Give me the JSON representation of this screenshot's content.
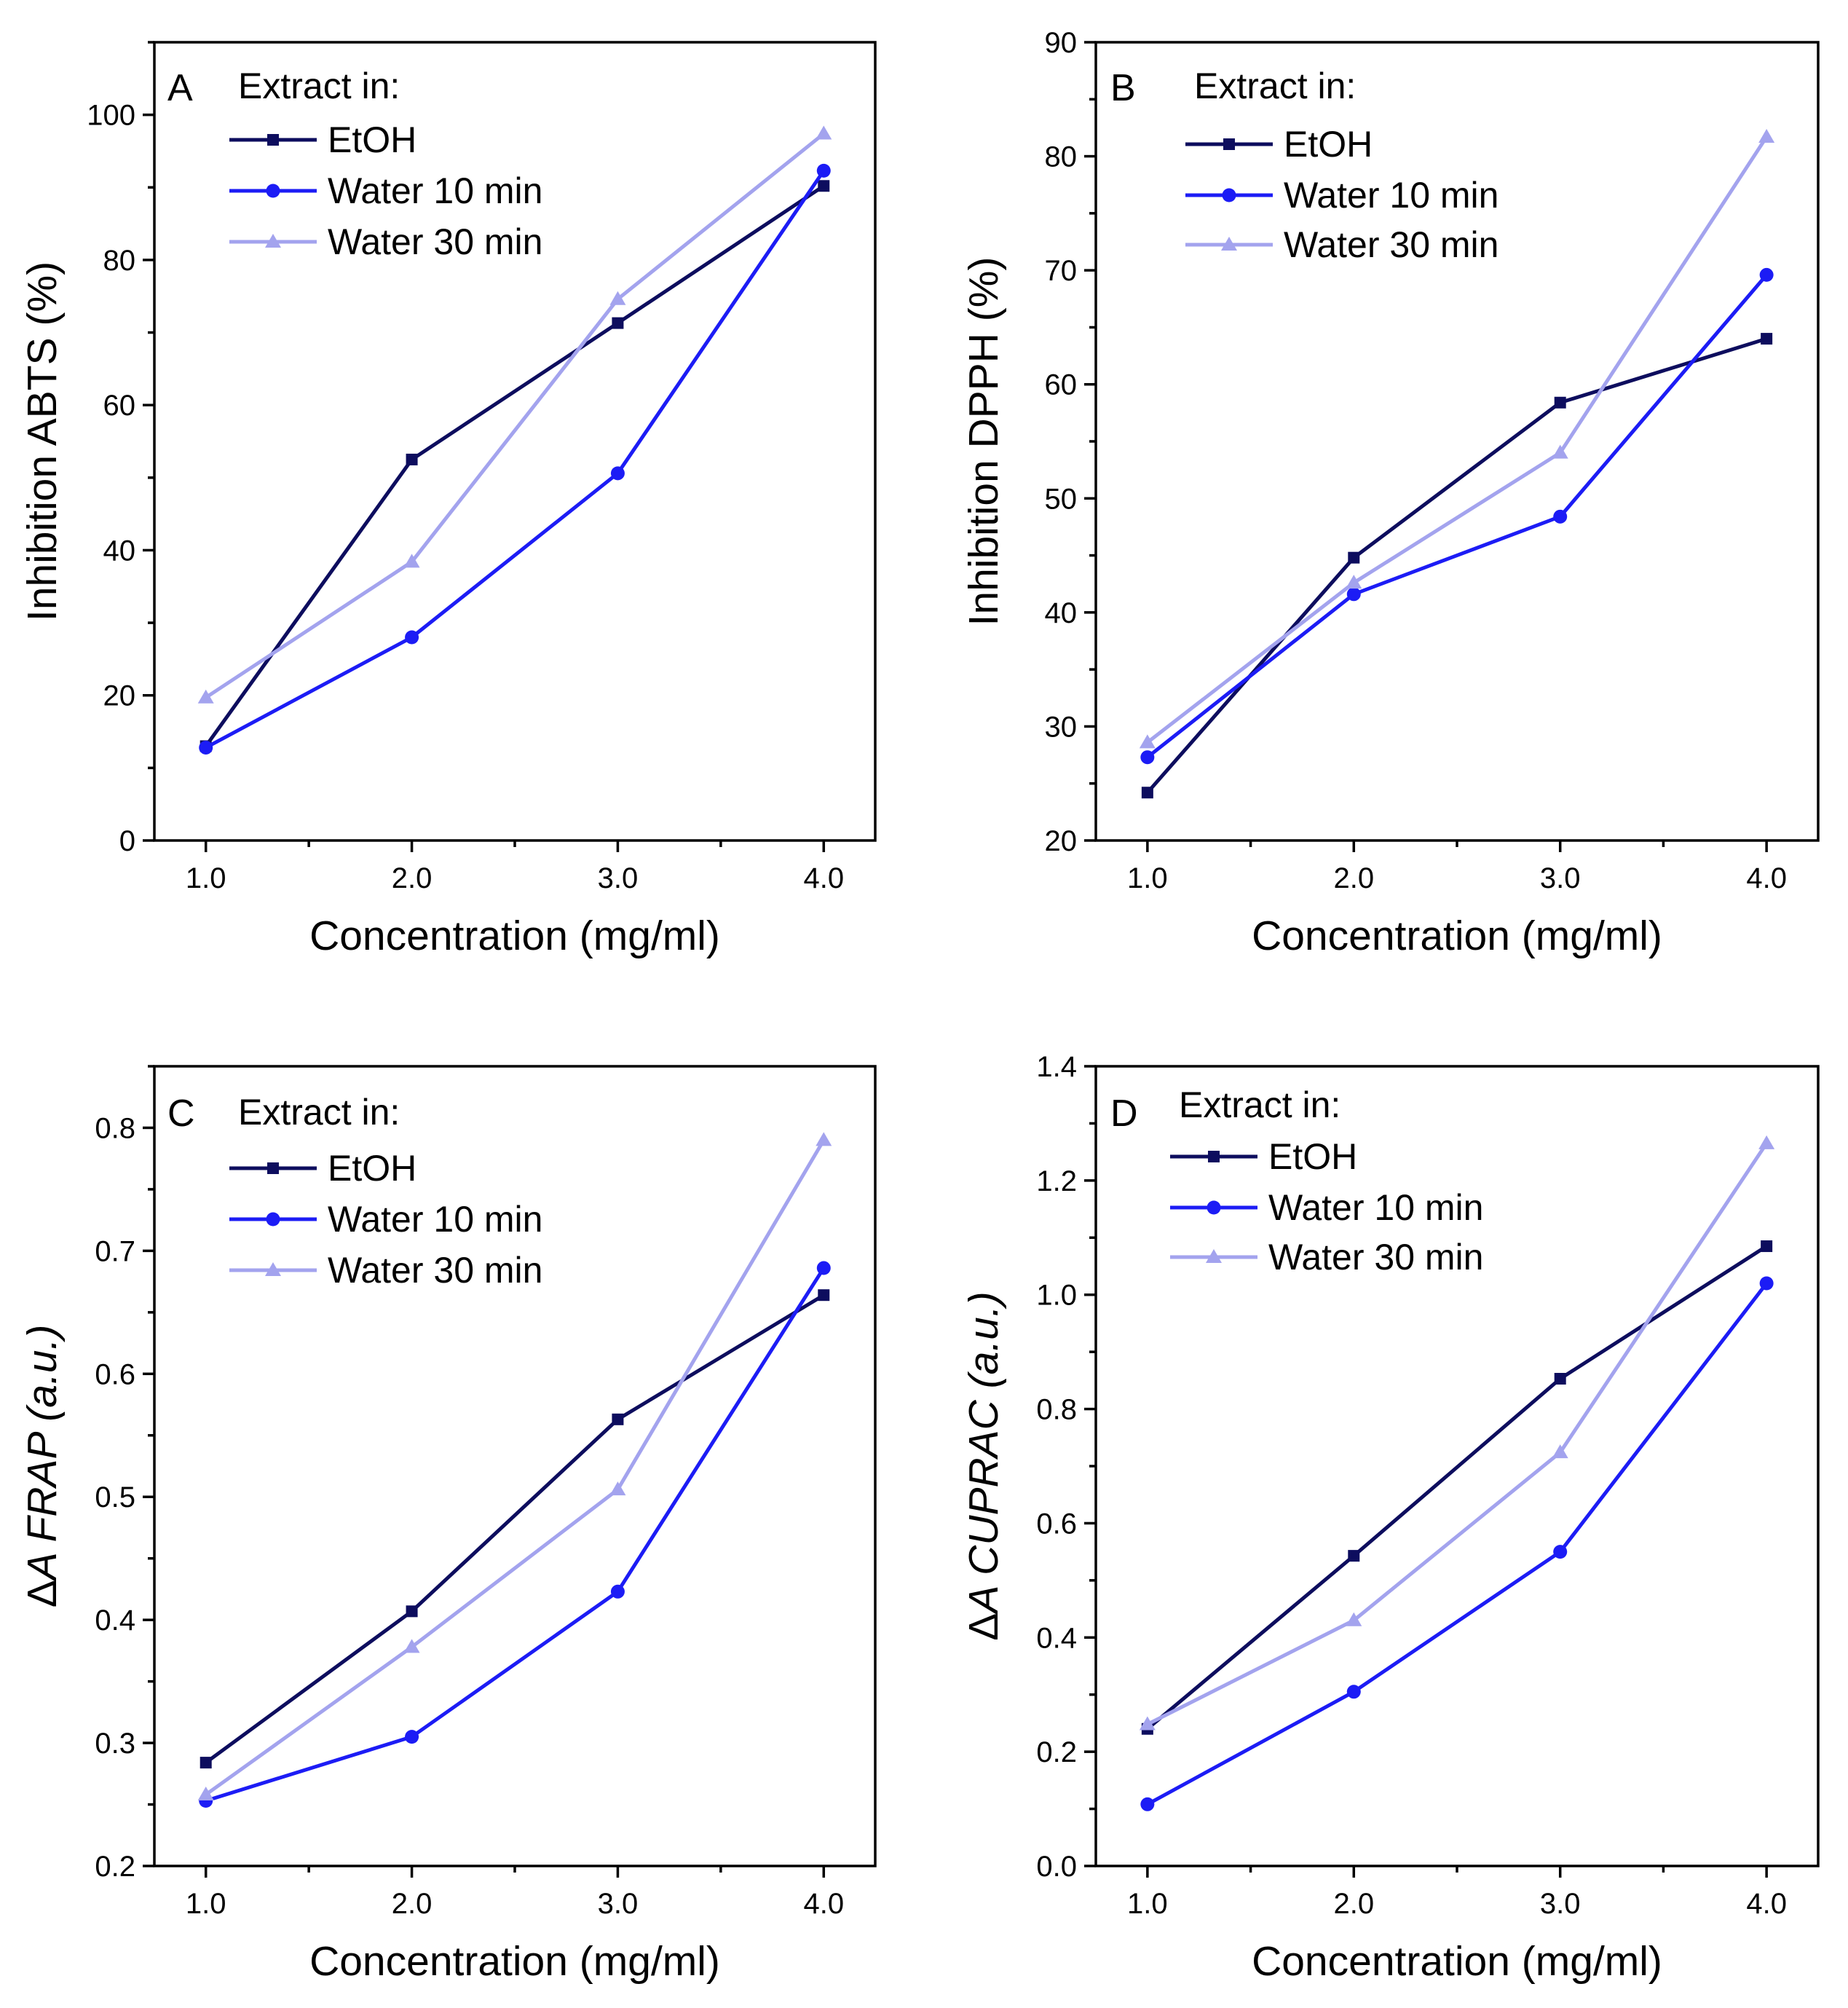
{
  "chart_data": [
    {
      "type": "line",
      "panel": "A",
      "legend_title": "Extract in:",
      "xlabel": "Concentration (mg/ml)",
      "ylabel": "Inhibition ABTS (%)",
      "xlim": [
        0.75,
        4.25
      ],
      "ylim": [
        0,
        110
      ],
      "xticks": [
        1.0,
        2.0,
        3.0,
        4.0
      ],
      "xtick_labels": [
        "1.0",
        "2.0",
        "3.0",
        "4.0"
      ],
      "yticks": [
        0,
        20,
        40,
        60,
        80,
        100
      ],
      "ytick_labels": [
        "0",
        "20",
        "40",
        "60",
        "80",
        "100"
      ],
      "x": [
        1.0,
        2.0,
        3.0,
        4.0
      ],
      "series": [
        {
          "name": "EtOH",
          "values": [
            13.0,
            52.5,
            71.3,
            90.2
          ],
          "color": "#0d0d5e",
          "marker": "square"
        },
        {
          "name": "Water 10 min",
          "values": [
            12.8,
            28.0,
            50.6,
            92.3
          ],
          "color": "#1c1cf5",
          "marker": "circle"
        },
        {
          "name": "Water 30 min",
          "values": [
            19.7,
            38.4,
            74.6,
            97.4
          ],
          "color": "#a3a3ee",
          "marker": "triangle"
        }
      ]
    },
    {
      "type": "line",
      "panel": "B",
      "legend_title": "Extract in:",
      "xlabel": "Concentration (mg/ml)",
      "ylabel": "Inhibition DPPH (%)",
      "xlim": [
        0.75,
        4.25
      ],
      "ylim": [
        20,
        90
      ],
      "xticks": [
        1.0,
        2.0,
        3.0,
        4.0
      ],
      "xtick_labels": [
        "1.0",
        "2.0",
        "3.0",
        "4.0"
      ],
      "yticks": [
        20,
        30,
        40,
        50,
        60,
        70,
        80,
        90
      ],
      "ytick_labels": [
        "20",
        "30",
        "40",
        "50",
        "60",
        "70",
        "80",
        "90"
      ],
      "x": [
        1.0,
        2.0,
        3.0,
        4.0
      ],
      "series": [
        {
          "name": "EtOH",
          "values": [
            24.2,
            44.8,
            58.4,
            64.0
          ],
          "color": "#0d0d5e",
          "marker": "square"
        },
        {
          "name": "Water 10 min",
          "values": [
            27.3,
            41.6,
            48.4,
            69.6
          ],
          "color": "#1c1cf5",
          "marker": "circle"
        },
        {
          "name": "Water 30 min",
          "values": [
            28.6,
            42.6,
            54.0,
            81.7
          ],
          "color": "#a3a3ee",
          "marker": "triangle"
        }
      ]
    },
    {
      "type": "line",
      "panel": "C",
      "legend_title": "Extract in:",
      "xlabel": "Concentration (mg/ml)",
      "ylabel": "ΔA FRAP (a.u.)",
      "ylabel_prefix": "Δ",
      "ylabel_italic": "A FRAP (a.u.)",
      "xlim": [
        0.75,
        4.25
      ],
      "ylim": [
        0.2,
        0.85
      ],
      "xticks": [
        1.0,
        2.0,
        3.0,
        4.0
      ],
      "xtick_labels": [
        "1.0",
        "2.0",
        "3.0",
        "4.0"
      ],
      "yticks": [
        0.2,
        0.3,
        0.4,
        0.5,
        0.6,
        0.7,
        0.8
      ],
      "ytick_labels": [
        "0.2",
        "0.3",
        "0.4",
        "0.5",
        "0.6",
        "0.7",
        "0.8"
      ],
      "x": [
        1.0,
        2.0,
        3.0,
        4.0
      ],
      "series": [
        {
          "name": "EtOH",
          "values": [
            0.284,
            0.407,
            0.563,
            0.664
          ],
          "color": "#0d0d5e",
          "marker": "square"
        },
        {
          "name": "Water 10 min",
          "values": [
            0.253,
            0.305,
            0.423,
            0.686
          ],
          "color": "#1c1cf5",
          "marker": "circle"
        },
        {
          "name": "Water 30 min",
          "values": [
            0.258,
            0.378,
            0.506,
            0.79
          ],
          "color": "#a3a3ee",
          "marker": "triangle"
        }
      ]
    },
    {
      "type": "line",
      "panel": "D",
      "legend_title": "Extract in:",
      "xlabel": "Concentration (mg/ml)",
      "ylabel": "ΔA CUPRAC (a.u.)",
      "ylabel_prefix": "Δ",
      "ylabel_italic": "A CUPRAC (a.u.)",
      "xlim": [
        0.75,
        4.25
      ],
      "ylim": [
        0.0,
        1.4
      ],
      "xticks": [
        1.0,
        2.0,
        3.0,
        4.0
      ],
      "xtick_labels": [
        "1.0",
        "2.0",
        "3.0",
        "4.0"
      ],
      "yticks": [
        0.0,
        0.2,
        0.4,
        0.6,
        0.8,
        1.0,
        1.2,
        1.4
      ],
      "ytick_labels": [
        "0.0",
        "0.2",
        "0.4",
        "0.6",
        "0.8",
        "1.0",
        "1.2",
        "1.4"
      ],
      "x": [
        1.0,
        2.0,
        3.0,
        4.0
      ],
      "series": [
        {
          "name": "EtOH",
          "values": [
            0.24,
            0.543,
            0.853,
            1.085
          ],
          "color": "#0d0d5e",
          "marker": "square"
        },
        {
          "name": "Water 10 min",
          "values": [
            0.108,
            0.305,
            0.55,
            1.02
          ],
          "color": "#1c1cf5",
          "marker": "circle"
        },
        {
          "name": "Water 30 min",
          "values": [
            0.248,
            0.43,
            0.724,
            1.265
          ],
          "color": "#a3a3ee",
          "marker": "triangle"
        }
      ]
    }
  ]
}
